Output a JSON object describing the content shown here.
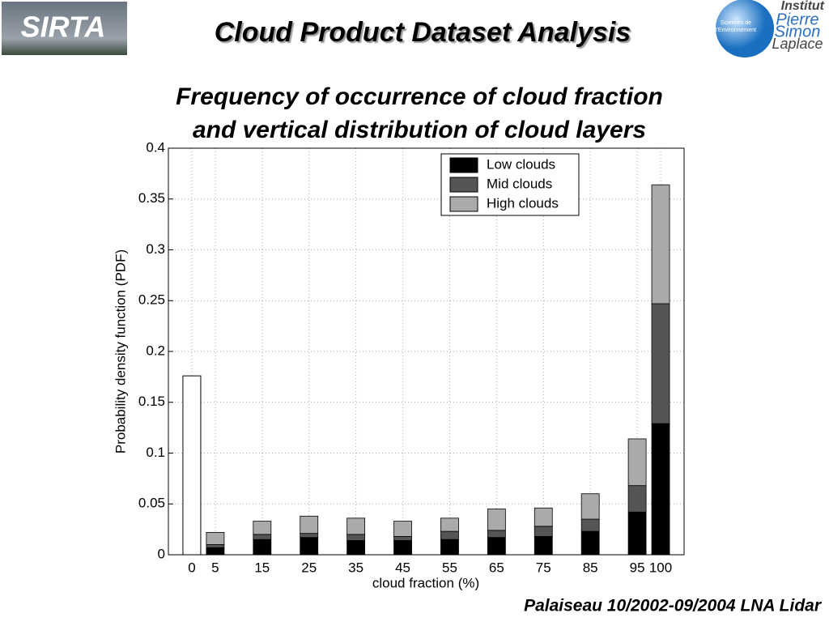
{
  "header": {
    "logo_left": "SIRTA",
    "title": "Cloud Product Dataset Analysis",
    "logo_right": [
      "Institut",
      "Pierre",
      "Simon",
      "Laplace"
    ],
    "logo_right_small": [
      "Sciences de",
      "l'Environnement"
    ]
  },
  "footer": "Palaiseau 10/2002-09/2004 LNA Lidar",
  "chart_data": {
    "type": "stacked_bar",
    "title": [
      "Frequency of occurrence of cloud fraction",
      "and vertical distribution of cloud layers"
    ],
    "xlabel": "cloud fraction (%)",
    "ylabel": "Probability density function (PDF)",
    "x": [
      5,
      15,
      25,
      35,
      45,
      55,
      65,
      75,
      85,
      95,
      100
    ],
    "series": [
      {
        "name": "Low clouds",
        "color": "#000000",
        "values": [
          0.007,
          0.015,
          0.017,
          0.014,
          0.014,
          0.015,
          0.017,
          0.018,
          0.023,
          0.042,
          0.129
        ]
      },
      {
        "name": "Mid clouds",
        "color": "#555555",
        "values": [
          0.003,
          0.005,
          0.004,
          0.006,
          0.004,
          0.008,
          0.007,
          0.01,
          0.012,
          0.026,
          0.118
        ]
      },
      {
        "name": "High clouds",
        "color": "#aaaaaa",
        "values": [
          0.012,
          0.013,
          0.017,
          0.016,
          0.015,
          0.013,
          0.021,
          0.018,
          0.025,
          0.046,
          0.117
        ]
      }
    ],
    "extra_bar": {
      "x": 0,
      "value": 0.176,
      "color": "#ffffff"
    },
    "xlim": [
      -5,
      105
    ],
    "xticks": [
      0,
      5,
      15,
      25,
      35,
      45,
      55,
      65,
      75,
      85,
      95,
      100
    ],
    "ylim": [
      0,
      0.4
    ],
    "yticks": [
      0,
      0.05,
      0.1,
      0.15,
      0.2,
      0.25,
      0.3,
      0.35,
      0.4
    ],
    "grid": true
  }
}
